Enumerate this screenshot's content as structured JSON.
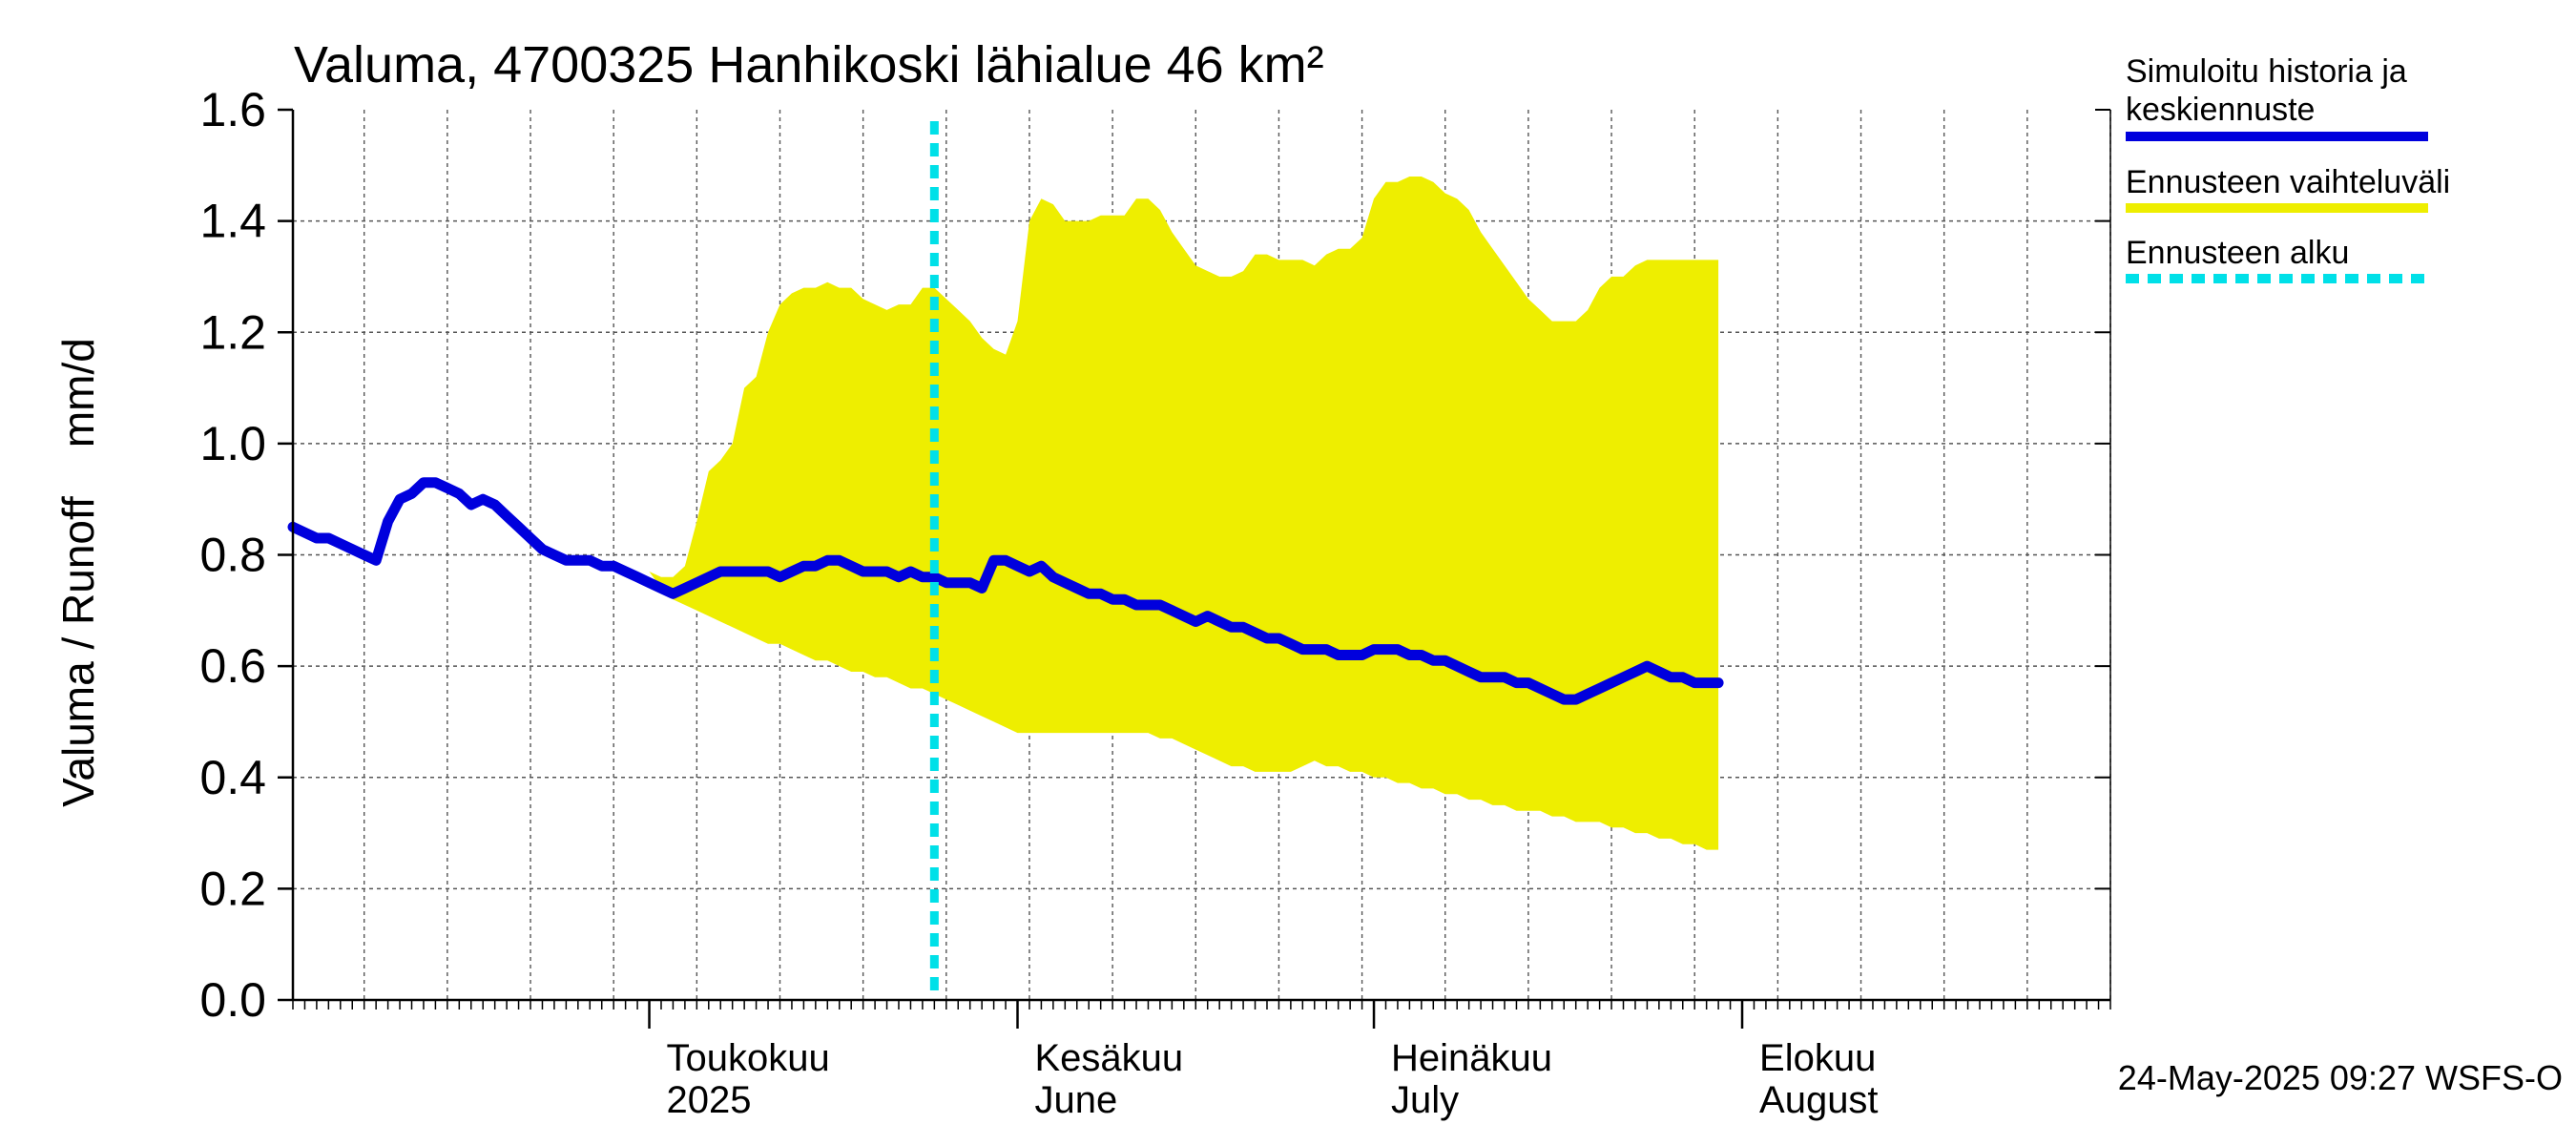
{
  "chart_data": {
    "type": "area",
    "title": "Valuma, 4700325 Hanhikoski lähialue 46 km²",
    "ylabel": "Valuma / Runoff    mm/d",
    "ylim": [
      0,
      1.6
    ],
    "yticks": [
      "0.0",
      "0.2",
      "0.4",
      "0.6",
      "0.8",
      "1.0",
      "1.2",
      "1.4",
      "1.6"
    ],
    "x_start": "2025-04-01",
    "x_end": "2025-08-31",
    "forecast_start_day": 54,
    "month_labels": [
      {
        "fi": "Toukokuu",
        "en": "2025",
        "day": 30
      },
      {
        "fi": "Kesäkuu",
        "en": "June",
        "day": 61
      },
      {
        "fi": "Heinäkuu",
        "en": "July",
        "day": 91
      },
      {
        "fi": "Elokuu",
        "en": "August",
        "day": 122
      }
    ],
    "week_gridlines_days": [
      6,
      13,
      20,
      27,
      34,
      41,
      48,
      55,
      62,
      69,
      76,
      83,
      90,
      97,
      104,
      111,
      118,
      125,
      132,
      139,
      146,
      153
    ],
    "month_boundaries_days": [
      30,
      61,
      91,
      122
    ],
    "series": [
      {
        "name": "Simuloitu historia ja keskiennuste",
        "color": "#0000dd",
        "points": [
          [
            0,
            0.85
          ],
          [
            1,
            0.84
          ],
          [
            2,
            0.83
          ],
          [
            3,
            0.83
          ],
          [
            4,
            0.82
          ],
          [
            5,
            0.81
          ],
          [
            6,
            0.8
          ],
          [
            7,
            0.79
          ],
          [
            8,
            0.86
          ],
          [
            9,
            0.9
          ],
          [
            10,
            0.91
          ],
          [
            11,
            0.93
          ],
          [
            12,
            0.93
          ],
          [
            13,
            0.92
          ],
          [
            14,
            0.91
          ],
          [
            15,
            0.89
          ],
          [
            16,
            0.9
          ],
          [
            17,
            0.89
          ],
          [
            18,
            0.87
          ],
          [
            19,
            0.85
          ],
          [
            20,
            0.83
          ],
          [
            21,
            0.81
          ],
          [
            22,
            0.8
          ],
          [
            23,
            0.79
          ],
          [
            24,
            0.79
          ],
          [
            25,
            0.79
          ],
          [
            26,
            0.78
          ],
          [
            27,
            0.78
          ],
          [
            28,
            0.77
          ],
          [
            29,
            0.76
          ],
          [
            30,
            0.75
          ],
          [
            31,
            0.74
          ],
          [
            32,
            0.73
          ],
          [
            33,
            0.74
          ],
          [
            34,
            0.75
          ],
          [
            35,
            0.76
          ],
          [
            36,
            0.77
          ],
          [
            37,
            0.77
          ],
          [
            38,
            0.77
          ],
          [
            39,
            0.77
          ],
          [
            40,
            0.77
          ],
          [
            41,
            0.76
          ],
          [
            42,
            0.77
          ],
          [
            43,
            0.78
          ],
          [
            44,
            0.78
          ],
          [
            45,
            0.79
          ],
          [
            46,
            0.79
          ],
          [
            47,
            0.78
          ],
          [
            48,
            0.77
          ],
          [
            49,
            0.77
          ],
          [
            50,
            0.77
          ],
          [
            51,
            0.76
          ],
          [
            52,
            0.77
          ],
          [
            53,
            0.76
          ],
          [
            54,
            0.76
          ],
          [
            55,
            0.75
          ],
          [
            56,
            0.75
          ],
          [
            57,
            0.75
          ],
          [
            58,
            0.74
          ],
          [
            59,
            0.79
          ],
          [
            60,
            0.79
          ],
          [
            61,
            0.78
          ],
          [
            62,
            0.77
          ],
          [
            63,
            0.78
          ],
          [
            64,
            0.76
          ],
          [
            65,
            0.75
          ],
          [
            66,
            0.74
          ],
          [
            67,
            0.73
          ],
          [
            68,
            0.73
          ],
          [
            69,
            0.72
          ],
          [
            70,
            0.72
          ],
          [
            71,
            0.71
          ],
          [
            72,
            0.71
          ],
          [
            73,
            0.71
          ],
          [
            74,
            0.7
          ],
          [
            75,
            0.69
          ],
          [
            76,
            0.68
          ],
          [
            77,
            0.69
          ],
          [
            78,
            0.68
          ],
          [
            79,
            0.67
          ],
          [
            80,
            0.67
          ],
          [
            81,
            0.66
          ],
          [
            82,
            0.65
          ],
          [
            83,
            0.65
          ],
          [
            84,
            0.64
          ],
          [
            85,
            0.63
          ],
          [
            86,
            0.63
          ],
          [
            87,
            0.63
          ],
          [
            88,
            0.62
          ],
          [
            89,
            0.62
          ],
          [
            90,
            0.62
          ],
          [
            91,
            0.63
          ],
          [
            92,
            0.63
          ],
          [
            93,
            0.63
          ],
          [
            94,
            0.62
          ],
          [
            95,
            0.62
          ],
          [
            96,
            0.61
          ],
          [
            97,
            0.61
          ],
          [
            98,
            0.6
          ],
          [
            99,
            0.59
          ],
          [
            100,
            0.58
          ],
          [
            101,
            0.58
          ],
          [
            102,
            0.58
          ],
          [
            103,
            0.57
          ],
          [
            104,
            0.57
          ],
          [
            105,
            0.56
          ],
          [
            106,
            0.55
          ],
          [
            107,
            0.54
          ],
          [
            108,
            0.54
          ],
          [
            109,
            0.55
          ],
          [
            110,
            0.56
          ],
          [
            111,
            0.57
          ],
          [
            112,
            0.58
          ],
          [
            113,
            0.59
          ],
          [
            114,
            0.6
          ],
          [
            115,
            0.59
          ],
          [
            116,
            0.58
          ],
          [
            117,
            0.58
          ],
          [
            118,
            0.57
          ],
          [
            119,
            0.57
          ],
          [
            120,
            0.57
          ]
        ]
      },
      {
        "name": "Ennusteen vaihteluväli",
        "color": "#eeee00",
        "upper": [
          [
            30,
            0.77
          ],
          [
            31,
            0.76
          ],
          [
            32,
            0.76
          ],
          [
            33,
            0.78
          ],
          [
            34,
            0.86
          ],
          [
            35,
            0.95
          ],
          [
            36,
            0.97
          ],
          [
            37,
            1.0
          ],
          [
            38,
            1.1
          ],
          [
            39,
            1.12
          ],
          [
            40,
            1.2
          ],
          [
            41,
            1.25
          ],
          [
            42,
            1.27
          ],
          [
            43,
            1.28
          ],
          [
            44,
            1.28
          ],
          [
            45,
            1.29
          ],
          [
            46,
            1.28
          ],
          [
            47,
            1.28
          ],
          [
            48,
            1.26
          ],
          [
            49,
            1.25
          ],
          [
            50,
            1.24
          ],
          [
            51,
            1.25
          ],
          [
            52,
            1.25
          ],
          [
            53,
            1.28
          ],
          [
            54,
            1.28
          ],
          [
            55,
            1.26
          ],
          [
            56,
            1.24
          ],
          [
            57,
            1.22
          ],
          [
            58,
            1.19
          ],
          [
            59,
            1.17
          ],
          [
            60,
            1.16
          ],
          [
            61,
            1.22
          ],
          [
            62,
            1.4
          ],
          [
            63,
            1.44
          ],
          [
            64,
            1.43
          ],
          [
            65,
            1.4
          ],
          [
            66,
            1.4
          ],
          [
            67,
            1.4
          ],
          [
            68,
            1.41
          ],
          [
            69,
            1.41
          ],
          [
            70,
            1.41
          ],
          [
            71,
            1.44
          ],
          [
            72,
            1.44
          ],
          [
            73,
            1.42
          ],
          [
            74,
            1.38
          ],
          [
            75,
            1.35
          ],
          [
            76,
            1.32
          ],
          [
            77,
            1.31
          ],
          [
            78,
            1.3
          ],
          [
            79,
            1.3
          ],
          [
            80,
            1.31
          ],
          [
            81,
            1.34
          ],
          [
            82,
            1.34
          ],
          [
            83,
            1.33
          ],
          [
            84,
            1.33
          ],
          [
            85,
            1.33
          ],
          [
            86,
            1.32
          ],
          [
            87,
            1.34
          ],
          [
            88,
            1.35
          ],
          [
            89,
            1.35
          ],
          [
            90,
            1.37
          ],
          [
            91,
            1.44
          ],
          [
            92,
            1.47
          ],
          [
            93,
            1.47
          ],
          [
            94,
            1.48
          ],
          [
            95,
            1.48
          ],
          [
            96,
            1.47
          ],
          [
            97,
            1.45
          ],
          [
            98,
            1.44
          ],
          [
            99,
            1.42
          ],
          [
            100,
            1.38
          ],
          [
            101,
            1.35
          ],
          [
            102,
            1.32
          ],
          [
            103,
            1.29
          ],
          [
            104,
            1.26
          ],
          [
            105,
            1.24
          ],
          [
            106,
            1.22
          ],
          [
            107,
            1.22
          ],
          [
            108,
            1.22
          ],
          [
            109,
            1.24
          ],
          [
            110,
            1.28
          ],
          [
            111,
            1.3
          ],
          [
            112,
            1.3
          ],
          [
            113,
            1.32
          ],
          [
            114,
            1.33
          ],
          [
            120,
            1.33
          ]
        ],
        "lower": [
          [
            30,
            0.77
          ],
          [
            31,
            0.74
          ],
          [
            32,
            0.72
          ],
          [
            33,
            0.71
          ],
          [
            34,
            0.7
          ],
          [
            35,
            0.69
          ],
          [
            36,
            0.68
          ],
          [
            37,
            0.67
          ],
          [
            38,
            0.66
          ],
          [
            39,
            0.65
          ],
          [
            40,
            0.64
          ],
          [
            41,
            0.64
          ],
          [
            42,
            0.63
          ],
          [
            43,
            0.62
          ],
          [
            44,
            0.61
          ],
          [
            45,
            0.61
          ],
          [
            46,
            0.6
          ],
          [
            47,
            0.59
          ],
          [
            48,
            0.59
          ],
          [
            49,
            0.58
          ],
          [
            50,
            0.58
          ],
          [
            51,
            0.57
          ],
          [
            52,
            0.56
          ],
          [
            53,
            0.56
          ],
          [
            54,
            0.55
          ],
          [
            55,
            0.54
          ],
          [
            56,
            0.53
          ],
          [
            57,
            0.52
          ],
          [
            58,
            0.51
          ],
          [
            59,
            0.5
          ],
          [
            60,
            0.49
          ],
          [
            61,
            0.48
          ],
          [
            62,
            0.48
          ],
          [
            63,
            0.48
          ],
          [
            64,
            0.48
          ],
          [
            65,
            0.48
          ],
          [
            66,
            0.48
          ],
          [
            67,
            0.48
          ],
          [
            68,
            0.48
          ],
          [
            69,
            0.48
          ],
          [
            70,
            0.48
          ],
          [
            71,
            0.48
          ],
          [
            72,
            0.48
          ],
          [
            73,
            0.47
          ],
          [
            74,
            0.47
          ],
          [
            75,
            0.46
          ],
          [
            76,
            0.45
          ],
          [
            77,
            0.44
          ],
          [
            78,
            0.43
          ],
          [
            79,
            0.42
          ],
          [
            80,
            0.42
          ],
          [
            81,
            0.41
          ],
          [
            82,
            0.41
          ],
          [
            83,
            0.41
          ],
          [
            84,
            0.41
          ],
          [
            85,
            0.42
          ],
          [
            86,
            0.43
          ],
          [
            87,
            0.42
          ],
          [
            88,
            0.42
          ],
          [
            89,
            0.41
          ],
          [
            90,
            0.41
          ],
          [
            91,
            0.4
          ],
          [
            92,
            0.4
          ],
          [
            93,
            0.39
          ],
          [
            94,
            0.39
          ],
          [
            95,
            0.38
          ],
          [
            96,
            0.38
          ],
          [
            97,
            0.37
          ],
          [
            98,
            0.37
          ],
          [
            99,
            0.36
          ],
          [
            100,
            0.36
          ],
          [
            101,
            0.35
          ],
          [
            102,
            0.35
          ],
          [
            103,
            0.34
          ],
          [
            104,
            0.34
          ],
          [
            105,
            0.34
          ],
          [
            106,
            0.33
          ],
          [
            107,
            0.33
          ],
          [
            108,
            0.32
          ],
          [
            109,
            0.32
          ],
          [
            110,
            0.32
          ],
          [
            111,
            0.31
          ],
          [
            112,
            0.31
          ],
          [
            113,
            0.3
          ],
          [
            114,
            0.3
          ],
          [
            115,
            0.29
          ],
          [
            116,
            0.29
          ],
          [
            117,
            0.28
          ],
          [
            118,
            0.28
          ],
          [
            119,
            0.27
          ],
          [
            120,
            0.27
          ]
        ]
      },
      {
        "name": "Ennusteen alku",
        "color": "#00e0e8"
      }
    ],
    "legend": [
      {
        "label_line1": "Simuloitu historia ja",
        "label_line2": "keskiennuste",
        "color": "#0000dd",
        "style": "solid"
      },
      {
        "label_line1": "Ennusteen vaihteluväli",
        "label_line2": "",
        "color": "#eeee00",
        "style": "solid"
      },
      {
        "label_line1": "Ennusteen alku",
        "label_line2": "",
        "color": "#00e0e8",
        "style": "dashed"
      }
    ],
    "legend_position": "right",
    "grid": true,
    "footer": "24-May-2025 09:27 WSFS-O"
  }
}
